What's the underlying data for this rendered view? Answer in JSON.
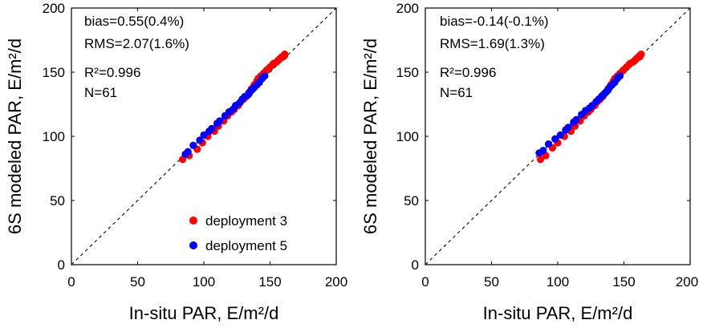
{
  "chart_data": [
    {
      "type": "scatter",
      "xlabel": "In-situ PAR, E/m²/d",
      "ylabel": "6S modeled PAR, E/m²/d",
      "xlim": [
        0,
        200
      ],
      "ylim": [
        0,
        200
      ],
      "xticks": [
        "0",
        "50",
        "100",
        "150",
        "200"
      ],
      "yticks": [
        "0",
        "50",
        "100",
        "150",
        "200"
      ],
      "stats": [
        "bias=0.55(0.4%)",
        "RMS=2.07(1.6%)",
        "R²=0.996",
        "N=61"
      ],
      "reference_line": "1:1",
      "legend": [
        "deployment 3",
        "deployment 5"
      ],
      "series": [
        {
          "name": "deployment 3",
          "color": "#ff0000",
          "points": [
            [
              84,
              82
            ],
            [
              89,
              85
            ],
            [
              95,
              90
            ],
            [
              99,
              95
            ],
            [
              103,
              100
            ],
            [
              108,
              104
            ],
            [
              111,
              108
            ],
            [
              115,
              112
            ],
            [
              118,
              116
            ],
            [
              121,
              119
            ],
            [
              123,
              121
            ],
            [
              126,
              124
            ],
            [
              128,
              127
            ],
            [
              130,
              129
            ],
            [
              132,
              131
            ],
            [
              134,
              134
            ],
            [
              136,
              137
            ],
            [
              138,
              140
            ],
            [
              140,
              143
            ],
            [
              141,
              145
            ],
            [
              143,
              147
            ],
            [
              145,
              149
            ],
            [
              147,
              151
            ],
            [
              148,
              152
            ],
            [
              150,
              154
            ],
            [
              152,
              156
            ],
            [
              153,
              157
            ],
            [
              155,
              158
            ],
            [
              156,
              159
            ],
            [
              157,
              160
            ],
            [
              158,
              161
            ],
            [
              159,
              162
            ],
            [
              160,
              162
            ],
            [
              161,
              163
            ],
            [
              161,
              164
            ]
          ]
        },
        {
          "name": "deployment 5",
          "color": "#0000ff",
          "points": [
            [
              86,
              86
            ],
            [
              88,
              88
            ],
            [
              92,
              93
            ],
            [
              97,
              97
            ],
            [
              100,
              101
            ],
            [
              104,
              104
            ],
            [
              106,
              106
            ],
            [
              110,
              110
            ],
            [
              112,
              112
            ],
            [
              116,
              116
            ],
            [
              119,
              119
            ],
            [
              122,
              121
            ],
            [
              124,
              124
            ],
            [
              127,
              126
            ],
            [
              129,
              129
            ],
            [
              131,
              131
            ],
            [
              133,
              132
            ],
            [
              134,
              133
            ],
            [
              135,
              135
            ],
            [
              136,
              136
            ],
            [
              137,
              137
            ],
            [
              138,
              138
            ],
            [
              140,
              140
            ],
            [
              142,
              142
            ],
            [
              144,
              145
            ],
            [
              146,
              147
            ]
          ]
        }
      ]
    },
    {
      "type": "scatter",
      "xlabel": "In-situ PAR, E/m²/d",
      "ylabel": "6S modeled PAR, E/m²/d",
      "xlim": [
        0,
        200
      ],
      "ylim": [
        0,
        200
      ],
      "xticks": [
        "0",
        "50",
        "100",
        "150",
        "200"
      ],
      "yticks": [
        "0",
        "50",
        "100",
        "150",
        "200"
      ],
      "stats": [
        "bias=-0.14(-0.1%)",
        "RMS=1.69(1.3%)",
        "R²=0.996",
        "N=61"
      ],
      "reference_line": "1:1",
      "series": [
        {
          "name": "deployment 3",
          "color": "#ff0000",
          "points": [
            [
              87,
              82
            ],
            [
              91,
              85
            ],
            [
              96,
              91
            ],
            [
              100,
              95
            ],
            [
              105,
              100
            ],
            [
              110,
              104
            ],
            [
              113,
              108
            ],
            [
              117,
              112
            ],
            [
              120,
              116
            ],
            [
              123,
              119
            ],
            [
              125,
              121
            ],
            [
              128,
              124
            ],
            [
              130,
              127
            ],
            [
              132,
              129
            ],
            [
              134,
              131
            ],
            [
              136,
              134
            ],
            [
              138,
              137
            ],
            [
              140,
              140
            ],
            [
              142,
              143
            ],
            [
              143,
              145
            ],
            [
              145,
              147
            ],
            [
              147,
              149
            ],
            [
              149,
              151
            ],
            [
              150,
              152
            ],
            [
              152,
              154
            ],
            [
              154,
              156
            ],
            [
              155,
              157
            ],
            [
              157,
              158
            ],
            [
              158,
              159
            ],
            [
              159,
              160
            ],
            [
              160,
              161
            ],
            [
              161,
              162
            ],
            [
              162,
              162
            ],
            [
              162,
              163
            ],
            [
              163,
              164
            ]
          ]
        },
        {
          "name": "deployment 5",
          "color": "#0000ff",
          "points": [
            [
              86,
              87
            ],
            [
              89,
              89
            ],
            [
              93,
              94
            ],
            [
              98,
              98
            ],
            [
              102,
              101
            ],
            [
              106,
              105
            ],
            [
              108,
              107
            ],
            [
              112,
              111
            ],
            [
              114,
              113
            ],
            [
              118,
              117
            ],
            [
              121,
              120
            ],
            [
              124,
              122
            ],
            [
              126,
              124
            ],
            [
              129,
              127
            ],
            [
              131,
              129
            ],
            [
              133,
              131
            ],
            [
              134,
              132
            ],
            [
              135,
              133
            ],
            [
              136,
              134
            ],
            [
              137,
              135
            ],
            [
              138,
              136
            ],
            [
              139,
              138
            ],
            [
              141,
              140
            ],
            [
              143,
              142
            ],
            [
              145,
              145
            ],
            [
              147,
              147
            ]
          ]
        }
      ]
    }
  ]
}
